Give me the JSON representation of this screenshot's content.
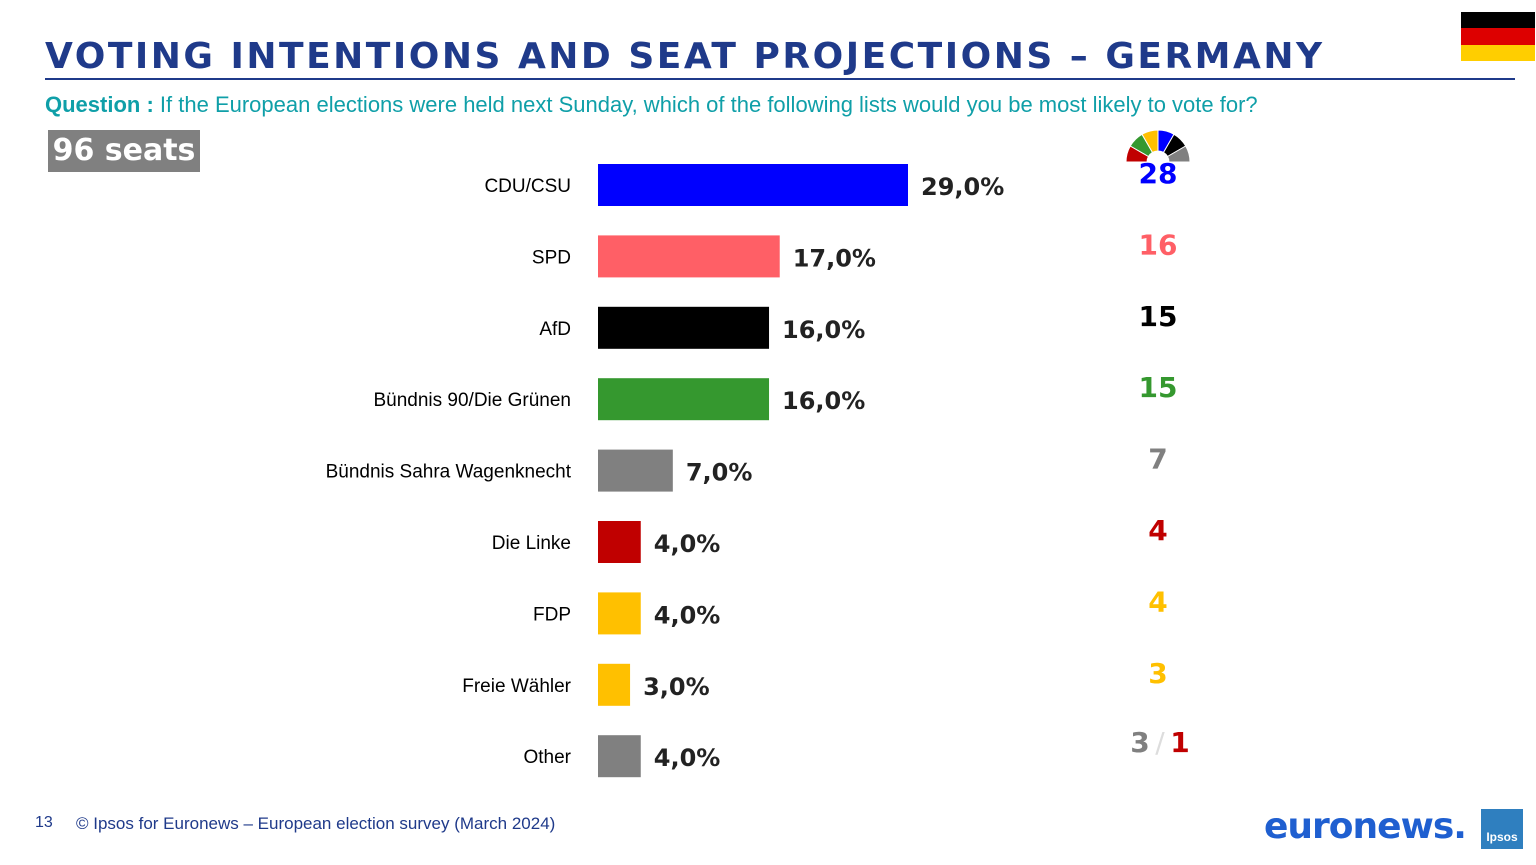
{
  "title": "VOTING INTENTIONS AND SEAT PROJECTIONS – GERMANY",
  "question_label": "Question :",
  "question_text": "If the European elections were held next Sunday, which of the following lists would you be most likely to vote for?",
  "seats_total": "96 seats",
  "flag_colors": [
    "#000000",
    "#dd0000",
    "#ffce00"
  ],
  "hemicycle_colors": [
    "#c00000",
    "#35982f",
    "#ffc000",
    "#0000ff",
    "#000000",
    "#808080"
  ],
  "chart_data": {
    "type": "bar",
    "orientation": "horizontal",
    "categories": [
      "CDU/CSU",
      "SPD",
      "AfD",
      "Bündnis 90/Die Grünen",
      "Bündnis Sahra Wagenknecht",
      "Die Linke",
      "FDP",
      "Freie Wähler",
      "Other"
    ],
    "values": [
      29.0,
      17.0,
      16.0,
      16.0,
      7.0,
      4.0,
      4.0,
      3.0,
      4.0
    ],
    "value_labels": [
      "29,0%",
      "17,0%",
      "16,0%",
      "16,0%",
      "7,0%",
      "4,0%",
      "4,0%",
      "3,0%",
      "4,0%"
    ],
    "colors": [
      "#0000ff",
      "#ff5f66",
      "#000000",
      "#35982f",
      "#808080",
      "#c00000",
      "#ffc000",
      "#ffc000",
      "#808080"
    ],
    "seats": [
      "28",
      "16",
      "15",
      "15",
      "7",
      "4",
      "4",
      "3",
      "3"
    ],
    "seat_colors": [
      "#0000ff",
      "#ff5f66",
      "#000000",
      "#35982f",
      "#808080",
      "#c00000",
      "#ffc000",
      "#ffc000",
      "#808080"
    ],
    "other_extra_seats": "1",
    "other_extra_color": "#c00000",
    "seat_separator": "/",
    "unit": "%"
  },
  "footer": {
    "page_number": "13",
    "source": "© Ipsos for Euronews – European election survey (March 2024)"
  },
  "logos": {
    "euronews": "euronews.",
    "ipsos": "Ipsos"
  }
}
